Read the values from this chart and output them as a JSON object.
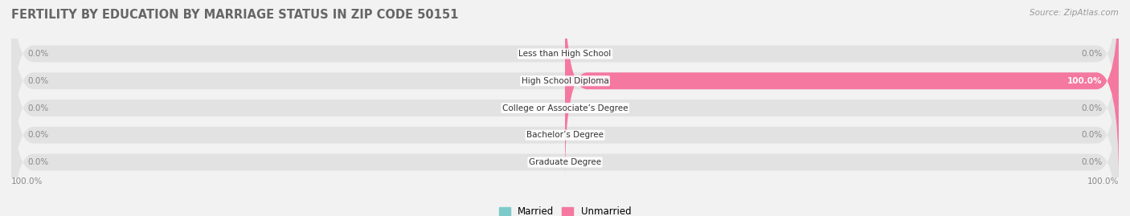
{
  "title": "FERTILITY BY EDUCATION BY MARRIAGE STATUS IN ZIP CODE 50151",
  "source": "Source: ZipAtlas.com",
  "categories": [
    "Less than High School",
    "High School Diploma",
    "College or Associate’s Degree",
    "Bachelor’s Degree",
    "Graduate Degree"
  ],
  "married_values": [
    0.0,
    0.0,
    0.0,
    0.0,
    0.0
  ],
  "unmarried_values": [
    0.0,
    100.0,
    0.0,
    0.0,
    0.0
  ],
  "married_color": "#7ECACA",
  "unmarried_color": "#F478A0",
  "bg_color": "#f2f2f2",
  "bar_bg_color": "#e2e2e2",
  "title_fontsize": 10.5,
  "label_fontsize": 7.5,
  "legend_fontsize": 8.5,
  "source_fontsize": 7.5,
  "xlim": [
    -100,
    100
  ],
  "bottom_left_label": "100.0%",
  "bottom_right_label": "100.0%"
}
